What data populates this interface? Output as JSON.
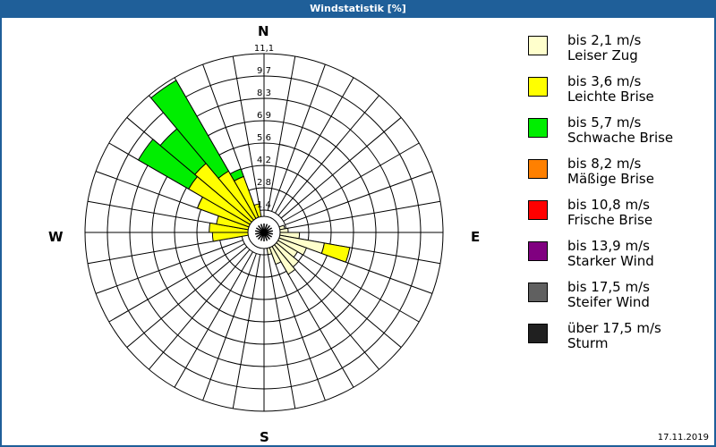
{
  "window": {
    "title": "Windstatistik [%]",
    "date": "17.11.2019",
    "frame_color": "#1f5f99"
  },
  "compass": {
    "n": "N",
    "e": "E",
    "s": "S",
    "w": "W"
  },
  "legend": [
    {
      "speed": "bis 2,1 m/s",
      "name": "Leiser Zug",
      "color": "#ffffcc"
    },
    {
      "speed": "bis 3,6 m/s",
      "name": "Leichte Brise",
      "color": "#ffff00"
    },
    {
      "speed": "bis 5,7 m/s",
      "name": "Schwache Brise",
      "color": "#00ee00"
    },
    {
      "speed": "bis 8,2 m/s",
      "name": "Mäßige Brise",
      "color": "#ff8000"
    },
    {
      "speed": "bis 10,8 m/s",
      "name": "Frische Brise",
      "color": "#ff0000"
    },
    {
      "speed": "bis 13,9 m/s",
      "name": "Starker Wind",
      "color": "#800080"
    },
    {
      "speed": "bis 17,5 m/s",
      "name": "Steifer Wind",
      "color": "#606060"
    },
    {
      "speed": "über 17,5 m/s",
      "name": "Sturm",
      "color": "#202020"
    }
  ],
  "chart_data": {
    "type": "polar-bar (wind rose)",
    "title": "Windstatistik [%]",
    "unit": "%",
    "radial_ticks": [
      "1,4",
      "2,8",
      "4,2",
      "5,6",
      "6,9",
      "8,3",
      "9,7",
      "11,1"
    ],
    "radial_range": [
      0,
      11.1
    ],
    "sector_width_deg": 10,
    "speed_classes": [
      "bis 2,1 m/s",
      "bis 3,6 m/s",
      "bis 5,7 m/s",
      "bis 8,2 m/s",
      "bis 10,8 m/s",
      "bis 13,9 m/s",
      "bis 17,5 m/s",
      "über 17,5 m/s"
    ],
    "sectors": [
      {
        "dir": 75,
        "cumulative": [
          1.3
        ]
      },
      {
        "dir": 85,
        "cumulative": [
          1.5
        ]
      },
      {
        "dir": 95,
        "cumulative": [
          2.2
        ]
      },
      {
        "dir": 105,
        "cumulative": [
          3.8,
          5.4
        ]
      },
      {
        "dir": 115,
        "cumulative": [
          2.8
        ]
      },
      {
        "dir": 125,
        "cumulative": [
          2.4
        ]
      },
      {
        "dir": 135,
        "cumulative": [
          2.8
        ]
      },
      {
        "dir": 145,
        "cumulative": [
          3.0
        ]
      },
      {
        "dir": 155,
        "cumulative": [
          2.1
        ]
      },
      {
        "dir": 165,
        "cumulative": [
          1.4
        ]
      },
      {
        "dir": 265,
        "cumulative": [
          0.6,
          3.2
        ]
      },
      {
        "dir": 275,
        "cumulative": [
          0.6,
          3.4
        ]
      },
      {
        "dir": 285,
        "cumulative": [
          0.6,
          3.0
        ]
      },
      {
        "dir": 295,
        "cumulative": [
          0.6,
          4.4,
          4.4
        ]
      },
      {
        "dir": 305,
        "cumulative": [
          0.6,
          5.4,
          9.0
        ]
      },
      {
        "dir": 315,
        "cumulative": [
          0.6,
          5.6,
          8.4
        ]
      },
      {
        "dir": 325,
        "cumulative": [
          0.6,
          4.4,
          10.9
        ]
      },
      {
        "dir": 335,
        "cumulative": [
          0.6,
          3.7,
          4.2
        ]
      },
      {
        "dir": 345,
        "cumulative": [
          0.6,
          1.8
        ]
      }
    ],
    "legend_position": "right"
  }
}
